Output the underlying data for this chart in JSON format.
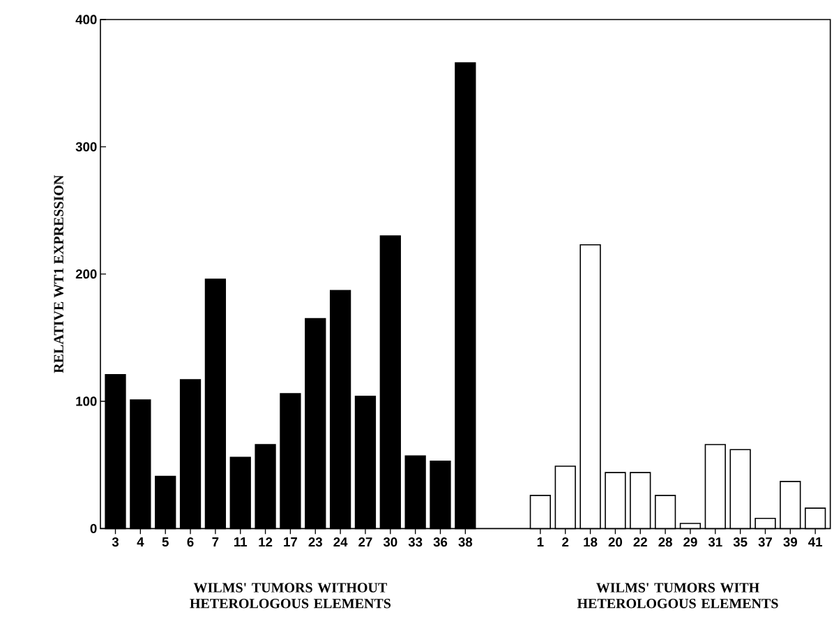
{
  "chart_data": {
    "type": "bar",
    "ylabel": "RELATIVE WT1 EXPRESSION",
    "categories": [
      "3",
      "4",
      "5",
      "6",
      "7",
      "11",
      "12",
      "17",
      "23",
      "24",
      "27",
      "30",
      "33",
      "36",
      "38",
      null,
      null,
      "1",
      "2",
      "18",
      "20",
      "22",
      "28",
      "29",
      "31",
      "35",
      "37",
      "39",
      "41"
    ],
    "series": [
      {
        "color": "#000000",
        "values": [
          121,
          101,
          41,
          117,
          196,
          56,
          66,
          106,
          165,
          187,
          104,
          230,
          57,
          53,
          366,
          null,
          null,
          null,
          null,
          null,
          null,
          null,
          null,
          null,
          null,
          null,
          null,
          null,
          null
        ]
      },
      {
        "color": "#ffffff",
        "values": [
          null,
          null,
          null,
          null,
          null,
          null,
          null,
          null,
          null,
          null,
          null,
          null,
          null,
          null,
          null,
          null,
          null,
          26,
          49,
          223,
          44,
          44,
          26,
          4,
          66,
          62,
          8,
          37,
          16
        ]
      }
    ],
    "ylim": [
      0,
      400
    ],
    "yticks": [
      0,
      100,
      200,
      300,
      400
    ],
    "grid": false,
    "annotations": [
      "WILMS' TUMORS WITHOUT HETEROLOGOUS ELEMENTS",
      "WILMS' TUMORS WITH HETEROLOGOUS ELEMENTS"
    ]
  }
}
